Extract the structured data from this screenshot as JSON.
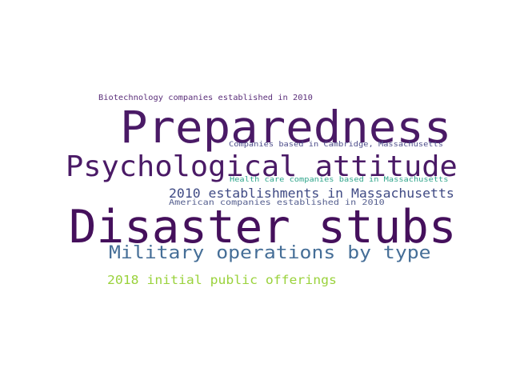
{
  "background": "#ffffff",
  "words": [
    {
      "text": "Biotechnology companies established in 2010",
      "color": "#5b2f7a"
    },
    {
      "text": "Preparedness",
      "color": "#4a1a66"
    },
    {
      "text": "Companies based in Cambridge, Massachusetts",
      "color": "#4d4d8a"
    },
    {
      "text": "Psychological attitude",
      "color": "#4a1a66"
    },
    {
      "text": "Health care companies based in Massachusetts",
      "color": "#2fa58b"
    },
    {
      "text": "2010 establishments in Massachusetts",
      "color": "#3f4a84"
    },
    {
      "text": "American companies established in 2010",
      "color": "#555f8f"
    },
    {
      "text": "Disaster stubs",
      "color": "#45105c"
    },
    {
      "text": "Military operations by type",
      "color": "#456e97"
    },
    {
      "text": "2018 initial public offerings",
      "color": "#9ad23c"
    }
  ]
}
